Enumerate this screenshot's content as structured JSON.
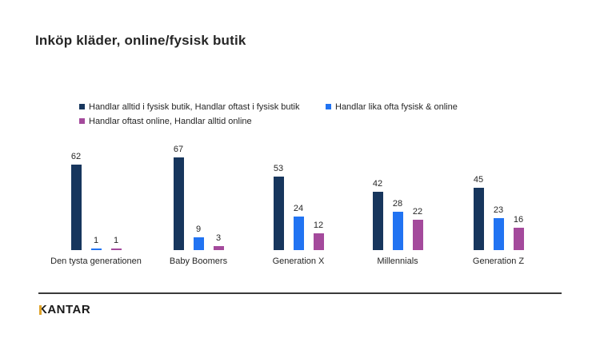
{
  "title": "Inköp kläder, online/fysisk butik",
  "chart_data": {
    "type": "bar",
    "title": "Inköp kläder, online/fysisk butik",
    "categories": [
      "Den tysta generationen",
      "Baby Boomers",
      "Generation X",
      "Millennials",
      "Generation Z"
    ],
    "series": [
      {
        "name": "Handlar alltid i fysisk butik, Handlar oftast i fysisk butik",
        "color": "#17365D",
        "values": [
          62,
          67,
          53,
          42,
          45
        ]
      },
      {
        "name": "Handlar lika ofta fysisk & online",
        "color": "#2173F2",
        "values": [
          1,
          9,
          24,
          28,
          23
        ]
      },
      {
        "name": "Handlar oftast online, Handlar alltid online",
        "color": "#A44A9C",
        "values": [
          1,
          3,
          12,
          22,
          16
        ]
      }
    ],
    "ylim": [
      0,
      70
    ],
    "grid": false,
    "axis_lines": "none",
    "legend_position": "top",
    "value_labels": true
  },
  "footer": {
    "logo_text": "KANTAR",
    "logo_accent_color": "#DFA32A",
    "divider_color": "#3A3A3A"
  }
}
